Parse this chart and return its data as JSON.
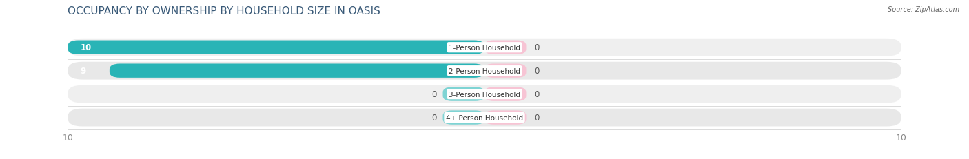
{
  "title": "OCCUPANCY BY OWNERSHIP BY HOUSEHOLD SIZE IN OASIS",
  "source": "Source: ZipAtlas.com",
  "categories": [
    "1-Person Household",
    "2-Person Household",
    "3-Person Household",
    "4+ Person Household"
  ],
  "owner_values": [
    10,
    9,
    0,
    0
  ],
  "renter_values": [
    0,
    0,
    0,
    0
  ],
  "owner_color": "#29b4b6",
  "renter_color": "#f4a7bf",
  "owner_zero_color": "#7fd4d4",
  "renter_zero_color": "#f7c4d4",
  "row_bg_colors": [
    "#efefef",
    "#e8e8e8",
    "#efefef",
    "#e8e8e8"
  ],
  "xlim": 10,
  "title_color": "#3a5a78",
  "title_fontsize": 11,
  "source_fontsize": 7,
  "tick_color": "#888888",
  "label_color": "#555555",
  "value_color_on_bar": "white",
  "zero_bar_width": 1.0
}
